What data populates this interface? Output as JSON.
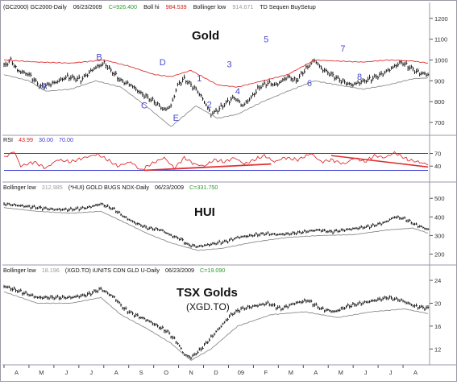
{
  "colors": {
    "price": "#1a1a1a",
    "boll_hi": "#e03030",
    "boll_low": "#8c8c8c",
    "rsi": "#e03030",
    "rsi_bands": "#3a3ad0",
    "wave_labels": "#4a4ad0",
    "setup_marks": "#c040c0",
    "header_green": "#2a9a2a",
    "header_red": "#d02020",
    "header_gray": "#9a9a9a",
    "header_blue": "#3a3ad0"
  },
  "chart_data": [
    {
      "type": "line",
      "panel": "gold",
      "title": "Gold",
      "header": {
        "symbol": "(GC2000) GC2000-Daily",
        "date": "06/23/2009",
        "close": "C=926.400",
        "boll_hi_label": "Boll hi",
        "boll_hi_value": "984.539",
        "boll_low_label": "Bollinger low",
        "boll_low_value": "914.671",
        "study": "TD Sequen BuySetup"
      },
      "y_ticks": [
        "1200",
        "1100",
        "1000",
        "900",
        "800",
        "700"
      ],
      "ylim": [
        650,
        1230
      ],
      "x_ticks": [
        "A",
        "M",
        "J",
        "J",
        "A",
        "S",
        "O",
        "N",
        "D",
        "09",
        "F",
        "M",
        "A",
        "M",
        "J",
        "J",
        "A"
      ],
      "series": [
        {
          "name": "Close",
          "keys": [
            [
              0,
              970
            ],
            [
              4,
              1000
            ],
            [
              8,
              950
            ],
            [
              15,
              930
            ],
            [
              22,
              870
            ],
            [
              30,
              890
            ],
            [
              38,
              920
            ],
            [
              46,
              905
            ],
            [
              54,
              960
            ],
            [
              60,
              985
            ],
            [
              64,
              950
            ],
            [
              70,
              900
            ],
            [
              76,
              880
            ],
            [
              82,
              840
            ],
            [
              90,
              800
            ],
            [
              96,
              760
            ],
            [
              100,
              780
            ],
            [
              104,
              880
            ],
            [
              108,
              910
            ],
            [
              112,
              880
            ],
            [
              116,
              850
            ],
            [
              120,
              800
            ],
            [
              124,
              740
            ],
            [
              128,
              760
            ],
            [
              134,
              800
            ],
            [
              138,
              820
            ],
            [
              143,
              780
            ],
            [
              148,
              820
            ],
            [
              153,
              870
            ],
            [
              158,
              890
            ],
            [
              163,
              880
            ],
            [
              170,
              920
            ],
            [
              175,
              900
            ],
            [
              180,
              950
            ],
            [
              186,
              1000
            ],
            [
              190,
              960
            ],
            [
              196,
              930
            ],
            [
              202,
              900
            ],
            [
              208,
              880
            ],
            [
              214,
              895
            ],
            [
              220,
              910
            ],
            [
              226,
              930
            ],
            [
              232,
              960
            ],
            [
              238,
              990
            ],
            [
              242,
              970
            ],
            [
              248,
              940
            ],
            [
              254,
              930
            ]
          ]
        },
        {
          "name": "Boll hi",
          "keys": [
            [
              0,
              1000
            ],
            [
              20,
              990
            ],
            [
              40,
              985
            ],
            [
              60,
              1000
            ],
            [
              75,
              970
            ],
            [
              90,
              930
            ],
            [
              100,
              920
            ],
            [
              112,
              950
            ],
            [
              128,
              880
            ],
            [
              140,
              870
            ],
            [
              155,
              900
            ],
            [
              170,
              930
            ],
            [
              186,
              1000
            ],
            [
              200,
              995
            ],
            [
              215,
              990
            ],
            [
              230,
              1000
            ],
            [
              245,
              995
            ],
            [
              254,
              985
            ]
          ]
        },
        {
          "name": "Bollinger low",
          "keys": [
            [
              0,
              930
            ],
            [
              15,
              900
            ],
            [
              25,
              850
            ],
            [
              40,
              860
            ],
            [
              55,
              900
            ],
            [
              70,
              870
            ],
            [
              85,
              780
            ],
            [
              100,
              680
            ],
            [
              115,
              780
            ],
            [
              128,
              720
            ],
            [
              140,
              740
            ],
            [
              155,
              800
            ],
            [
              170,
              850
            ],
            [
              186,
              900
            ],
            [
              200,
              880
            ],
            [
              215,
              860
            ],
            [
              230,
              880
            ],
            [
              245,
              910
            ],
            [
              254,
              914
            ]
          ]
        }
      ],
      "annotations": [
        {
          "text": "A",
          "x": 24,
          "y": 860
        },
        {
          "text": "B",
          "x": 57,
          "y": 1000
        },
        {
          "text": "C",
          "x": 84,
          "y": 768
        },
        {
          "text": "D",
          "x": 95,
          "y": 975
        },
        {
          "text": "E",
          "x": 103,
          "y": 708
        },
        {
          "text": "1",
          "x": 117,
          "y": 897
        },
        {
          "text": "2",
          "x": 123,
          "y": 771
        },
        {
          "text": "3",
          "x": 135,
          "y": 965
        },
        {
          "text": "4",
          "x": 140,
          "y": 835
        },
        {
          "text": "5",
          "x": 157,
          "y": 1085
        },
        {
          "text": "6",
          "x": 183,
          "y": 875
        },
        {
          "text": "7",
          "x": 203,
          "y": 1040
        },
        {
          "text": "8",
          "x": 213,
          "y": 905
        }
      ]
    },
    {
      "type": "line",
      "panel": "rsi",
      "header": {
        "label": "RSI",
        "value": "43.99",
        "low_band": "30.00",
        "high_band": "70.00"
      },
      "y_ticks": [
        "70",
        "40"
      ],
      "ylim": [
        8,
        92
      ],
      "bands": [
        70,
        30
      ],
      "series": [
        {
          "name": "RSI",
          "keys": [
            [
              0,
              60
            ],
            [
              6,
              75
            ],
            [
              10,
              40
            ],
            [
              18,
              50
            ],
            [
              25,
              35
            ],
            [
              32,
              55
            ],
            [
              40,
              50
            ],
            [
              48,
              60
            ],
            [
              56,
              68
            ],
            [
              62,
              55
            ],
            [
              68,
              40
            ],
            [
              76,
              50
            ],
            [
              82,
              30
            ],
            [
              88,
              45
            ],
            [
              96,
              60
            ],
            [
              102,
              35
            ],
            [
              108,
              60
            ],
            [
              114,
              45
            ],
            [
              120,
              40
            ],
            [
              126,
              55
            ],
            [
              132,
              50
            ],
            [
              138,
              60
            ],
            [
              144,
              45
            ],
            [
              150,
              55
            ],
            [
              156,
              65
            ],
            [
              162,
              50
            ],
            [
              168,
              60
            ],
            [
              176,
              55
            ],
            [
              184,
              70
            ],
            [
              190,
              50
            ],
            [
              196,
              55
            ],
            [
              204,
              45
            ],
            [
              210,
              60
            ],
            [
              216,
              50
            ],
            [
              222,
              65
            ],
            [
              228,
              60
            ],
            [
              234,
              72
            ],
            [
              242,
              55
            ],
            [
              248,
              50
            ],
            [
              254,
              44
            ]
          ]
        }
      ]
    },
    {
      "type": "line",
      "panel": "hui",
      "title": "HUI",
      "header": {
        "label": "Bollinger low",
        "value": "312.985",
        "symbol": "(*HUI) GOLD BUGS NDX-Daily",
        "date": "06/23/2009",
        "close": "C=331.750"
      },
      "y_ticks": [
        "500",
        "400",
        "300",
        "200"
      ],
      "ylim": [
        150,
        540
      ],
      "series": [
        {
          "name": "Close",
          "keys": [
            [
              0,
              470
            ],
            [
              10,
              460
            ],
            [
              20,
              450
            ],
            [
              30,
              440
            ],
            [
              40,
              440
            ],
            [
              50,
              450
            ],
            [
              58,
              470
            ],
            [
              66,
              440
            ],
            [
              72,
              400
            ],
            [
              78,
              370
            ],
            [
              86,
              340
            ],
            [
              94,
              330
            ],
            [
              100,
              300
            ],
            [
              106,
              280
            ],
            [
              110,
              250
            ],
            [
              116,
              240
            ],
            [
              122,
              250
            ],
            [
              128,
              260
            ],
            [
              134,
              270
            ],
            [
              140,
              290
            ],
            [
              148,
              300
            ],
            [
              156,
              310
            ],
            [
              164,
              305
            ],
            [
              172,
              310
            ],
            [
              180,
              320
            ],
            [
              188,
              330
            ],
            [
              196,
              320
            ],
            [
              204,
              330
            ],
            [
              212,
              340
            ],
            [
              220,
              350
            ],
            [
              228,
              370
            ],
            [
              234,
              400
            ],
            [
              240,
              390
            ],
            [
              246,
              360
            ],
            [
              254,
              332
            ]
          ]
        },
        {
          "name": "Bollinger low",
          "keys": [
            [
              0,
              450
            ],
            [
              20,
              430
            ],
            [
              40,
              420
            ],
            [
              58,
              430
            ],
            [
              70,
              380
            ],
            [
              86,
              310
            ],
            [
              100,
              260
            ],
            [
              116,
              220
            ],
            [
              130,
              230
            ],
            [
              150,
              265
            ],
            [
              170,
              290
            ],
            [
              190,
              300
            ],
            [
              210,
              305
            ],
            [
              230,
              330
            ],
            [
              245,
              340
            ],
            [
              254,
              313
            ]
          ]
        }
      ]
    },
    {
      "type": "line",
      "panel": "xgd",
      "title": "TSX Golds",
      "subtitle": "(XGD.TO)",
      "header": {
        "label": "Bollinger low",
        "value": "18.196",
        "symbol": "(XGD.TO) iUNITS CDN GLD U-Daily",
        "date": "06/23/2009",
        "close": "C=19.090"
      },
      "y_ticks": [
        "24",
        "20",
        "16",
        "12"
      ],
      "ylim": [
        9.5,
        25
      ],
      "series": [
        {
          "name": "Close",
          "keys": [
            [
              0,
              23
            ],
            [
              10,
              22
            ],
            [
              20,
              21
            ],
            [
              30,
              21
            ],
            [
              40,
              21
            ],
            [
              50,
              21.5
            ],
            [
              58,
              22.5
            ],
            [
              66,
              21
            ],
            [
              72,
              19
            ],
            [
              78,
              18
            ],
            [
              86,
              17
            ],
            [
              92,
              16
            ],
            [
              98,
              15
            ],
            [
              104,
              13
            ],
            [
              108,
              11
            ],
            [
              112,
              10.5
            ],
            [
              118,
              12
            ],
            [
              124,
              14
            ],
            [
              130,
              16
            ],
            [
              136,
              18
            ],
            [
              142,
              19
            ],
            [
              150,
              19.5
            ],
            [
              158,
              20
            ],
            [
              166,
              19
            ],
            [
              174,
              20
            ],
            [
              182,
              20.5
            ],
            [
              190,
              19
            ],
            [
              198,
              18.5
            ],
            [
              206,
              19.5
            ],
            [
              214,
              20
            ],
            [
              222,
              20.5
            ],
            [
              230,
              21
            ],
            [
              238,
              20.5
            ],
            [
              246,
              19.5
            ],
            [
              254,
              19.1
            ]
          ]
        },
        {
          "name": "Bollinger low",
          "keys": [
            [
              0,
              22
            ],
            [
              20,
              20
            ],
            [
              40,
              20
            ],
            [
              58,
              21
            ],
            [
              70,
              18
            ],
            [
              86,
              15.5
            ],
            [
              100,
              13
            ],
            [
              112,
              10
            ],
            [
              124,
              12
            ],
            [
              140,
              16
            ],
            [
              160,
              18
            ],
            [
              180,
              18.5
            ],
            [
              200,
              17.5
            ],
            [
              220,
              18.5
            ],
            [
              240,
              19
            ],
            [
              254,
              18.2
            ]
          ]
        }
      ]
    }
  ]
}
